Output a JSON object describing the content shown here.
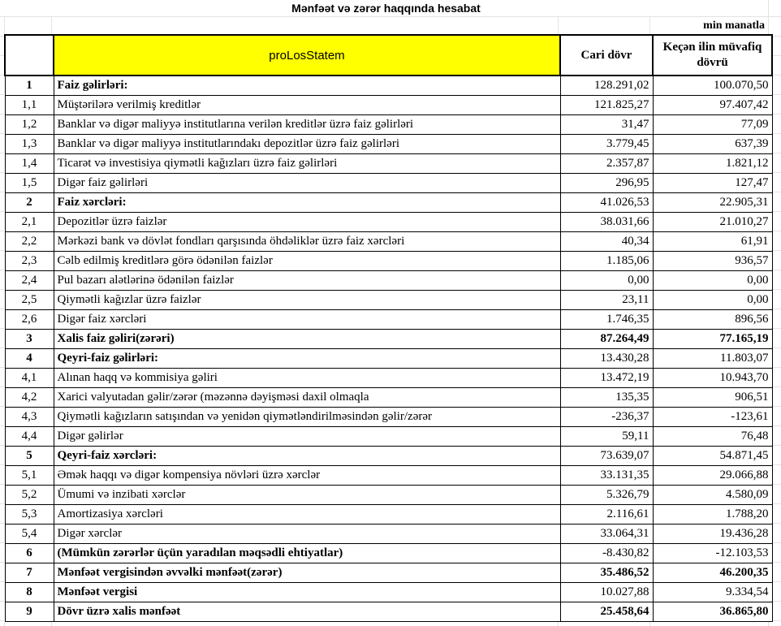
{
  "title": "Mənfəət və zərər haqqında hesabat",
  "unit": "min manatla",
  "header": {
    "label": "proLosStatem",
    "col_current": "Cari dövr",
    "col_previous": "Keçən ilin müvafiq dövrü"
  },
  "rows": [
    {
      "no": "1",
      "label": "Faiz gəlirləri:",
      "cur": "128.291,02",
      "prev": "100.070,50",
      "bold_label": true,
      "bold_values": false
    },
    {
      "no": "1,1",
      "label": "Müştərilərə verilmiş kreditlər",
      "cur": "121.825,27",
      "prev": "97.407,42"
    },
    {
      "no": "1,2",
      "label": "Banklar və digər maliyyə institutlarına verilən kreditlər üzrə faiz gəlirləri",
      "cur": "31,47",
      "prev": "77,09"
    },
    {
      "no": "1,3",
      "label": "Banklar və digər maliyyə institutlarındakı depozitlər üzrə faiz gəlirləri",
      "cur": "3.779,45",
      "prev": "637,39"
    },
    {
      "no": "1,4",
      "label": "Ticarət və investisiya qiymətli kağızları üzrə faiz gəlirləri",
      "cur": "2.357,87",
      "prev": "1.821,12"
    },
    {
      "no": "1,5",
      "label": "Digər faiz gəlirləri",
      "cur": "296,95",
      "prev": "127,47"
    },
    {
      "no": "2",
      "label": "Faiz xərcləri:",
      "cur": "41.026,53",
      "prev": "22.905,31",
      "bold_label": true
    },
    {
      "no": "2,1",
      "label": "Depozitlər üzrə faizlər",
      "cur": "38.031,66",
      "prev": "21.010,27"
    },
    {
      "no": "2,2",
      "label": "Mərkəzi bank və dövlət fondları qarşısında öhdəliklər üzrə faiz xərcləri",
      "cur": "40,34",
      "prev": "61,91"
    },
    {
      "no": "2,3",
      "label": "Cəlb edilmiş kreditlərə görə ödənilən faizlər",
      "cur": "1.185,06",
      "prev": "936,57"
    },
    {
      "no": "2,4",
      "label": "Pul bazarı alətlərinə ödənilən faizlər",
      "cur": "0,00",
      "prev": "0,00"
    },
    {
      "no": "2,5",
      "label": "Qiymətli kağızlar üzrə faizlər",
      "cur": "23,11",
      "prev": "0,00"
    },
    {
      "no": "2,6",
      "label": "Digər faiz xərcləri",
      "cur": "1.746,35",
      "prev": "896,56"
    },
    {
      "no": "3",
      "label": "Xalis faiz gəliri(zərəri)",
      "cur": "87.264,49",
      "prev": "77.165,19",
      "bold_label": true,
      "bold_values": true
    },
    {
      "no": "4",
      "label": "Qeyri-faiz gəlirləri:",
      "cur": "13.430,28",
      "prev": "11.803,07",
      "bold_label": true
    },
    {
      "no": "4,1",
      "label": "Alınan haqq və kommisiya gəliri",
      "cur": "13.472,19",
      "prev": "10.943,70"
    },
    {
      "no": "4,2",
      "label": "Xarici valyutadan gəlir/zərər (məzənnə dəyişməsi daxil olmaqla",
      "cur": "135,35",
      "prev": "906,51"
    },
    {
      "no": "4,3",
      "label": "Qiymətli kağızların satışından və yenidən qiymətləndirilməsindən gəlir/zərər",
      "cur": "-236,37",
      "prev": "-123,61"
    },
    {
      "no": "4,4",
      "label": "Digər gəlirlər",
      "cur": "59,11",
      "prev": "76,48"
    },
    {
      "no": "5",
      "label": "Qeyri-faiz xərcləri:",
      "cur": "73.639,07",
      "prev": "54.871,45",
      "bold_label": true
    },
    {
      "no": "5,1",
      "label": "Əmək haqqı və digər kompensiya növləri üzrə xərclər",
      "cur": "33.131,35",
      "prev": "29.066,88"
    },
    {
      "no": "5,2",
      "label": "Ümumi və inzibati xərclər",
      "cur": "5.326,79",
      "prev": "4.580,09"
    },
    {
      "no": "5,3",
      "label": "Amortizasiya xərcləri",
      "cur": "2.116,61",
      "prev": "1.788,20"
    },
    {
      "no": "5,4",
      "label": "Digər xərclər",
      "cur": "33.064,31",
      "prev": "19.436,28"
    },
    {
      "no": "6",
      "label": "(Mümkün zərərlər üçün yaradılan məqsədli ehtiyatlar)",
      "cur": "-8.430,82",
      "prev": "-12.103,53",
      "bold_label": true
    },
    {
      "no": "7",
      "label": "Mənfəət vergisindən əvvəlki mənfəət(zərər)",
      "cur": "35.486,52",
      "prev": "46.200,35",
      "bold_label": true,
      "bold_values": true
    },
    {
      "no": "8",
      "label": "Mənfəət vergisi",
      "cur": "10.027,88",
      "prev": "9.334,54",
      "bold_label": true
    },
    {
      "no": "9",
      "label": "Dövr üzrə xalis mənfəət",
      "cur": "25.458,64",
      "prev": "36.865,80",
      "bold_label": true,
      "bold_values": true
    }
  ]
}
